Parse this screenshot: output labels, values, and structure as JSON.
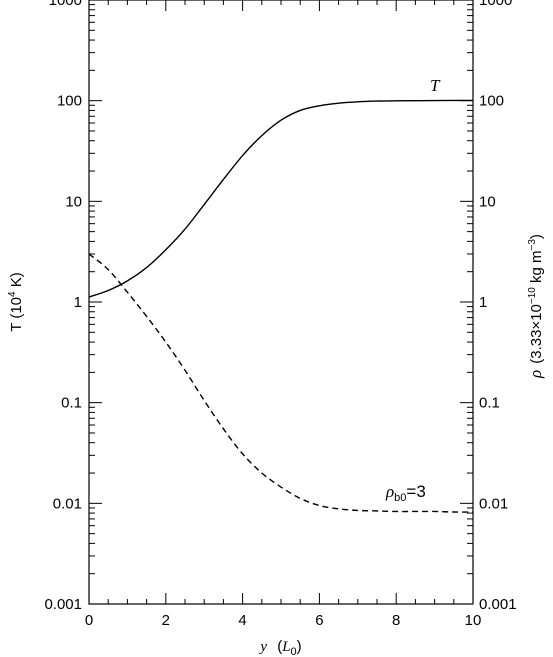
{
  "chart_data": {
    "type": "line",
    "xlabel": {
      "var": "y",
      "open": "(",
      "unit": "L",
      "unit_sub": "0",
      "close": ")"
    },
    "ylabel_left": {
      "text": "T (10",
      "sup": "4",
      "tail": " K)"
    },
    "ylabel_right": {
      "var": "ρ",
      "prefix": "(3.33×10",
      "sup1": "−10",
      "mid": " kg m",
      "sup2": "−3",
      "tail": ")"
    },
    "xlim": [
      0,
      10
    ],
    "ylim": [
      0.001,
      1000
    ],
    "yscale": "log",
    "x_ticks": [
      "0",
      "2",
      "4",
      "6",
      "8",
      "10"
    ],
    "y_ticks": [
      "0.001",
      "0.01",
      "0.1",
      "1",
      "10",
      "100",
      "1000"
    ],
    "grid": false,
    "series": [
      {
        "name": "T",
        "style": "solid",
        "color": "#000000",
        "x": [
          0,
          0.5,
          1,
          1.5,
          2,
          2.5,
          3,
          3.5,
          4,
          4.5,
          5,
          5.5,
          6,
          6.5,
          7,
          7.5,
          8,
          8.5,
          9,
          9.5,
          10
        ],
        "y": [
          1.12,
          1.3,
          1.62,
          2.2,
          3.3,
          5.3,
          9.3,
          16.5,
          28.5,
          45,
          64,
          80,
          89,
          94.5,
          97.5,
          99,
          99.7,
          100,
          100.3,
          100.5,
          100.6
        ]
      },
      {
        "name": "ρ_b0=3",
        "label": {
          "symbol": "ρ",
          "sub": "b0",
          "value": "=3"
        },
        "style": "dashed",
        "color": "#000000",
        "x": [
          0,
          0.5,
          1,
          1.5,
          2,
          2.5,
          3,
          3.5,
          4,
          4.5,
          5,
          5.5,
          6,
          6.5,
          7,
          7.5,
          8,
          8.5,
          9,
          9.5,
          10
        ],
        "y": [
          3.0,
          2.1,
          1.25,
          0.72,
          0.4,
          0.21,
          0.105,
          0.055,
          0.031,
          0.02,
          0.0145,
          0.0112,
          0.0095,
          0.0088,
          0.0085,
          0.0084,
          0.0083,
          0.0083,
          0.0083,
          0.0082,
          0.0082
        ]
      }
    ]
  }
}
